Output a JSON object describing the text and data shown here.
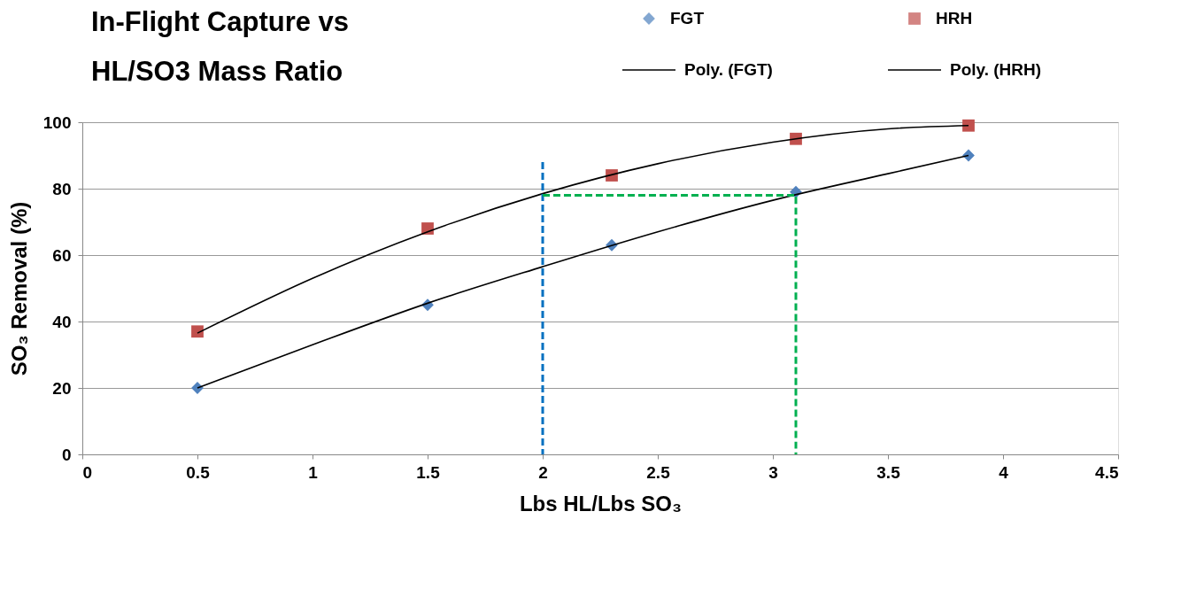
{
  "chart_data": {
    "type": "scatter",
    "title": "In-Flight Capture vs\nHL/SO3 Mass Ratio",
    "xlabel": "Lbs HL/Lbs SO₃",
    "ylabel": "SO₃ Removal (%)",
    "xlim": [
      0,
      4.5
    ],
    "xticks": [
      0,
      0.5,
      1,
      1.5,
      2,
      2.5,
      3,
      3.5,
      4,
      4.5
    ],
    "ylim": [
      0,
      100
    ],
    "yticks": [
      0,
      20,
      40,
      60,
      80,
      100
    ],
    "grid": "y",
    "legend": "top",
    "series": [
      {
        "name": "FGT",
        "marker": "diamond",
        "color": "#4f81bd",
        "x": [
          0.5,
          1.5,
          2.3,
          3.1,
          3.85
        ],
        "values": [
          20,
          45,
          63,
          79,
          90
        ]
      },
      {
        "name": "HRH",
        "marker": "square",
        "color": "#c0504d",
        "x": [
          0.5,
          1.5,
          2.3,
          3.1,
          3.85
        ],
        "values": [
          37,
          68,
          84,
          95,
          99
        ]
      },
      {
        "name": "Poly. (FGT)",
        "type": "line",
        "color": "#000000",
        "line_style": "solid",
        "x": [
          0.5,
          1,
          1.5,
          2,
          2.5,
          3,
          3.5,
          3.85
        ],
        "values": [
          20,
          33,
          45.5,
          56.5,
          67,
          76.5,
          84.5,
          90
        ]
      },
      {
        "name": "Poly. (HRH)",
        "type": "line",
        "color": "#000000",
        "line_style": "solid",
        "x": [
          0.5,
          1,
          1.5,
          2,
          2.5,
          3,
          3.5,
          3.85
        ],
        "values": [
          36.5,
          53,
          67,
          78.5,
          87.5,
          94,
          98,
          99
        ]
      },
      {
        "type": "line",
        "color": "#0070c0",
        "line_style": "dashed",
        "x": [
          2,
          2
        ],
        "values": [
          88,
          0
        ]
      },
      {
        "type": "line",
        "color": "#00b050",
        "line_style": "dashed",
        "x": [
          2,
          3.1,
          3.1
        ],
        "values": [
          78,
          78,
          0
        ]
      }
    ]
  }
}
